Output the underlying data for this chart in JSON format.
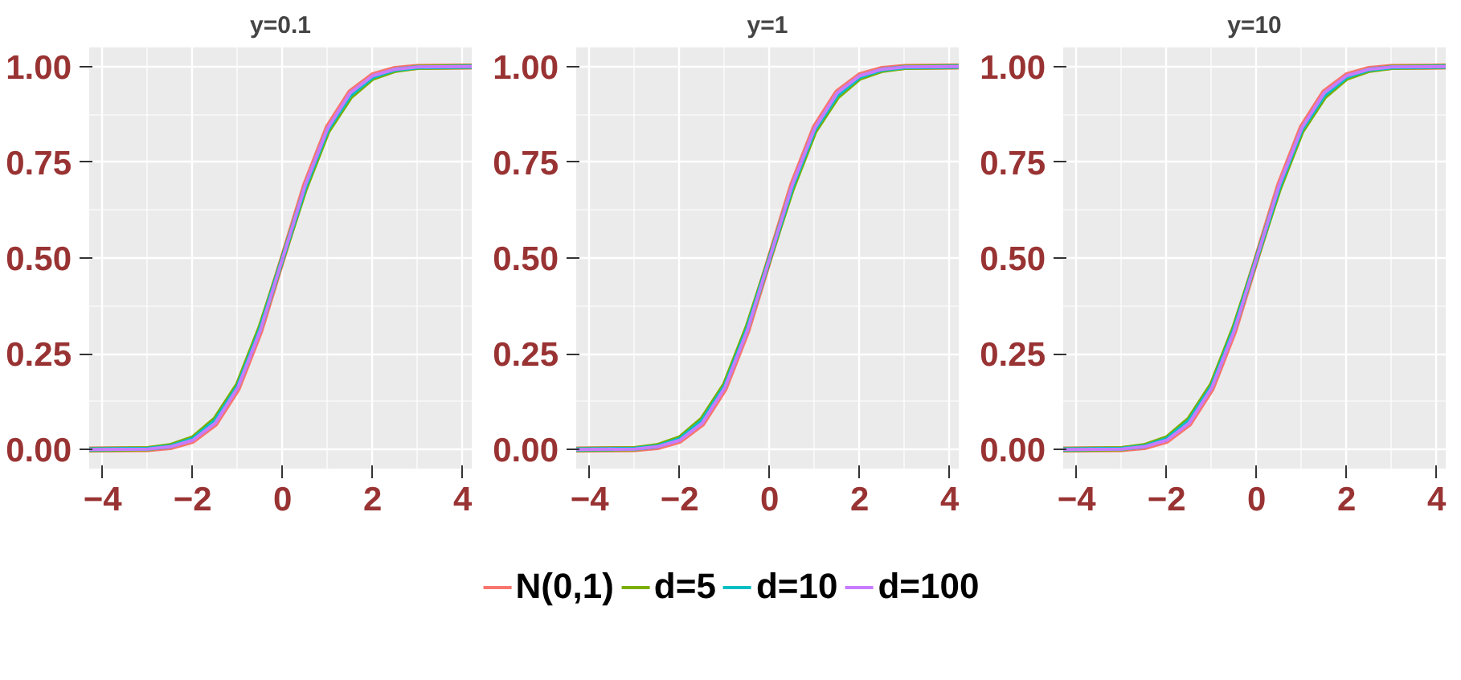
{
  "chart_data": [
    {
      "type": "line",
      "title": "y=0.1",
      "x": [
        -4.3,
        -3,
        -2.5,
        -2,
        -1.5,
        -1,
        -0.5,
        0,
        0.5,
        1,
        1.5,
        2,
        2.5,
        3,
        4.2
      ],
      "xlim": [
        -4.3,
        4.2
      ],
      "xticks": [
        -4,
        -2,
        0,
        2,
        4
      ],
      "ylim": [
        -0.05,
        1.05
      ],
      "yticks": [
        {
          "value": 0,
          "label": "0.00"
        },
        {
          "value": 0.25,
          "label": "0.25"
        },
        {
          "value": 0.5,
          "label": "0.50"
        },
        {
          "value": 0.75,
          "label": "0.75"
        },
        {
          "value": 1,
          "label": "1.00"
        }
      ],
      "grid": true,
      "legend": "bottom",
      "series": [
        {
          "name": "N(0,1)",
          "color": "#f8766d",
          "values": [
            0,
            0.001,
            0.006,
            0.023,
            0.067,
            0.159,
            0.309,
            0.5,
            0.691,
            0.841,
            0.933,
            0.977,
            0.994,
            0.999,
            1
          ]
        },
        {
          "name": "d=5",
          "color": "#7cae00",
          "values": [
            0,
            0.002,
            0.01,
            0.03,
            0.08,
            0.17,
            0.32,
            0.5,
            0.68,
            0.83,
            0.92,
            0.97,
            0.99,
            0.998,
            1
          ]
        },
        {
          "name": "d=10",
          "color": "#00bfc4",
          "values": [
            0,
            0.002,
            0.008,
            0.027,
            0.075,
            0.165,
            0.315,
            0.5,
            0.685,
            0.835,
            0.925,
            0.973,
            0.992,
            0.998,
            1
          ]
        },
        {
          "name": "d=100",
          "color": "#c77cff",
          "values": [
            0,
            0.001,
            0.007,
            0.024,
            0.069,
            0.161,
            0.31,
            0.5,
            0.69,
            0.839,
            0.931,
            0.976,
            0.993,
            0.999,
            1
          ]
        }
      ]
    },
    {
      "type": "line",
      "title": "y=1",
      "x": [
        -4.3,
        -3,
        -2.5,
        -2,
        -1.5,
        -1,
        -0.5,
        0,
        0.5,
        1,
        1.5,
        2,
        2.5,
        3,
        4.2
      ],
      "xlim": [
        -4.3,
        4.2
      ],
      "xticks": [
        -4,
        -2,
        0,
        2,
        4
      ],
      "ylim": [
        -0.05,
        1.05
      ],
      "yticks": [
        {
          "value": 0,
          "label": "0.00"
        },
        {
          "value": 0.25,
          "label": "0.25"
        },
        {
          "value": 0.5,
          "label": "0.50"
        },
        {
          "value": 0.75,
          "label": "0.75"
        },
        {
          "value": 1,
          "label": "1.00"
        }
      ],
      "grid": true,
      "series": [
        {
          "color": "#f8766d",
          "values": [
            0,
            0.001,
            0.006,
            0.023,
            0.067,
            0.159,
            0.309,
            0.5,
            0.691,
            0.841,
            0.933,
            0.977,
            0.994,
            0.999,
            1
          ]
        },
        {
          "color": "#7cae00",
          "values": [
            0,
            0.002,
            0.01,
            0.03,
            0.08,
            0.17,
            0.32,
            0.5,
            0.68,
            0.83,
            0.92,
            0.97,
            0.99,
            0.998,
            1
          ]
        },
        {
          "color": "#00bfc4",
          "values": [
            0,
            0.002,
            0.008,
            0.027,
            0.075,
            0.165,
            0.315,
            0.5,
            0.685,
            0.835,
            0.925,
            0.973,
            0.992,
            0.998,
            1
          ]
        },
        {
          "color": "#c77cff",
          "values": [
            0,
            0.001,
            0.007,
            0.024,
            0.069,
            0.161,
            0.31,
            0.5,
            0.69,
            0.839,
            0.931,
            0.976,
            0.993,
            0.999,
            1
          ]
        }
      ]
    },
    {
      "type": "line",
      "title": "y=10",
      "x": [
        -4.3,
        -3,
        -2.5,
        -2,
        -1.5,
        -1,
        -0.5,
        0,
        0.5,
        1,
        1.5,
        2,
        2.5,
        3,
        4.2
      ],
      "xlim": [
        -4.3,
        4.2
      ],
      "xticks": [
        -4,
        -2,
        0,
        2,
        4
      ],
      "ylim": [
        -0.05,
        1.05
      ],
      "yticks": [
        {
          "value": 0,
          "label": "0.00"
        },
        {
          "value": 0.25,
          "label": "0.25"
        },
        {
          "value": 0.5,
          "label": "0.50"
        },
        {
          "value": 0.75,
          "label": "0.75"
        },
        {
          "value": 1,
          "label": "1.00"
        }
      ],
      "grid": true,
      "series": [
        {
          "color": "#f8766d",
          "values": [
            0,
            0.001,
            0.006,
            0.023,
            0.067,
            0.159,
            0.309,
            0.5,
            0.691,
            0.841,
            0.933,
            0.977,
            0.994,
            0.999,
            1
          ]
        },
        {
          "color": "#7cae00",
          "values": [
            0,
            0.002,
            0.01,
            0.03,
            0.08,
            0.17,
            0.32,
            0.5,
            0.68,
            0.83,
            0.92,
            0.97,
            0.99,
            0.998,
            1
          ]
        },
        {
          "color": "#00bfc4",
          "values": [
            0,
            0.002,
            0.008,
            0.027,
            0.075,
            0.165,
            0.315,
            0.5,
            0.685,
            0.835,
            0.925,
            0.973,
            0.992,
            0.998,
            1
          ]
        },
        {
          "color": "#c77cff",
          "values": [
            0,
            0.001,
            0.007,
            0.024,
            0.069,
            0.161,
            0.31,
            0.5,
            0.69,
            0.839,
            0.931,
            0.976,
            0.993,
            0.999,
            1
          ]
        }
      ]
    }
  ]
}
